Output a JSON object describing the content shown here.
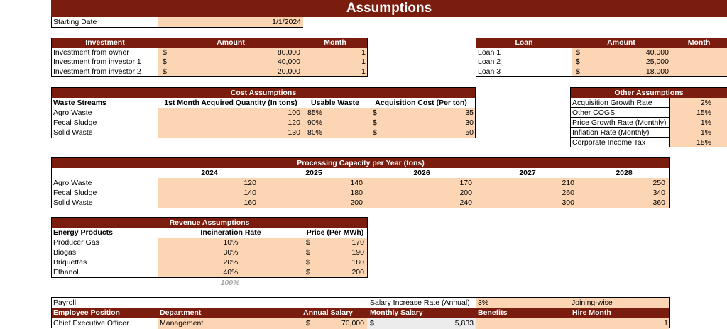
{
  "title": "Assumptions",
  "starting_date": {
    "label": "Starting Date",
    "value": "1/1/2024"
  },
  "investment": {
    "headers": [
      "Investment",
      "Amount",
      "Month"
    ],
    "rows": [
      {
        "name": "Investment from owner",
        "cur": "$",
        "amount": "80,000",
        "month": "1"
      },
      {
        "name": "Investment from investor 1",
        "cur": "$",
        "amount": "40,000",
        "month": "1"
      },
      {
        "name": "Investment from investor 2",
        "cur": "$",
        "amount": "20,000",
        "month": "1"
      }
    ]
  },
  "loan": {
    "headers": [
      "Loan",
      "Amount",
      "Month"
    ],
    "rows": [
      {
        "name": "Loan 1",
        "cur": "$",
        "amount": "40,000"
      },
      {
        "name": "Loan 2",
        "cur": "$",
        "amount": "25,000"
      },
      {
        "name": "Loan 3",
        "cur": "$",
        "amount": "18,000"
      }
    ]
  },
  "cost": {
    "title": "Cost Assumptions",
    "headers": [
      "Waste Streams",
      "1st Month Acquired Quantity (In tons)",
      "Usable Waste",
      "Acquisition Cost (Per ton)"
    ],
    "rows": [
      {
        "name": "Agro Waste",
        "qty": "100",
        "usable": "85%",
        "cur": "$",
        "cost": "35"
      },
      {
        "name": "Fecal Sludge",
        "qty": "120",
        "usable": "90%",
        "cur": "$",
        "cost": "30"
      },
      {
        "name": "Solid Waste",
        "qty": "130",
        "usable": "80%",
        "cur": "$",
        "cost": "50"
      }
    ]
  },
  "other": {
    "title": "Other Assumptions",
    "rows": [
      {
        "name": "Acquisition Growth Rate",
        "value": "2%"
      },
      {
        "name": "Other COGS",
        "value": "15%"
      },
      {
        "name": "Price Growth Rate (Monthly)",
        "value": "1%"
      },
      {
        "name": "Inflation Rate (Monthly)",
        "value": "1%"
      },
      {
        "name": "Corporate Income Tax",
        "value": "15%"
      }
    ]
  },
  "capacity": {
    "title": "Processing Capacity per Year (tons)",
    "years": [
      "2024",
      "2025",
      "2026",
      "2027",
      "2028"
    ],
    "rows": [
      {
        "name": "Agro Waste",
        "values": [
          "120",
          "140",
          "170",
          "210",
          "250"
        ]
      },
      {
        "name": "Fecal Sludge",
        "values": [
          "140",
          "180",
          "200",
          "260",
          "340"
        ]
      },
      {
        "name": "Solid Waste",
        "values": [
          "160",
          "200",
          "240",
          "300",
          "360"
        ]
      }
    ]
  },
  "revenue": {
    "title": "Revenue Assumptions",
    "headers": [
      "Energy Products",
      "Incineration Rate",
      "Price (Per MWh)"
    ],
    "rows": [
      {
        "name": "Producer Gas",
        "rate": "10%",
        "cur": "$",
        "price": "170"
      },
      {
        "name": "Biogas",
        "rate": "30%",
        "cur": "$",
        "price": "190"
      },
      {
        "name": "Briquettes",
        "rate": "20%",
        "cur": "$",
        "price": "180"
      },
      {
        "name": "Ethanol",
        "rate": "40%",
        "cur": "$",
        "price": "200"
      }
    ],
    "total": "100%"
  },
  "payroll": {
    "label": "Payroll",
    "salary_increase_label": "Salary Increase Rate (Annual)",
    "salary_increase_value": "3%",
    "joining": "Joining-wise",
    "headers": [
      "Employee Position",
      "Department",
      "Annual Salary",
      "Monthly Salary",
      "Benefits",
      "Hire Month"
    ],
    "rows": [
      {
        "position": "Chief Executive Officer",
        "department": "Management",
        "cur": "$",
        "annual": "70,000",
        "cur2": "$",
        "monthly": "5,833",
        "benefits": "",
        "hire": "1"
      }
    ]
  },
  "colors": {
    "header": "#7a1c0e",
    "input": "#fcd5b4"
  }
}
